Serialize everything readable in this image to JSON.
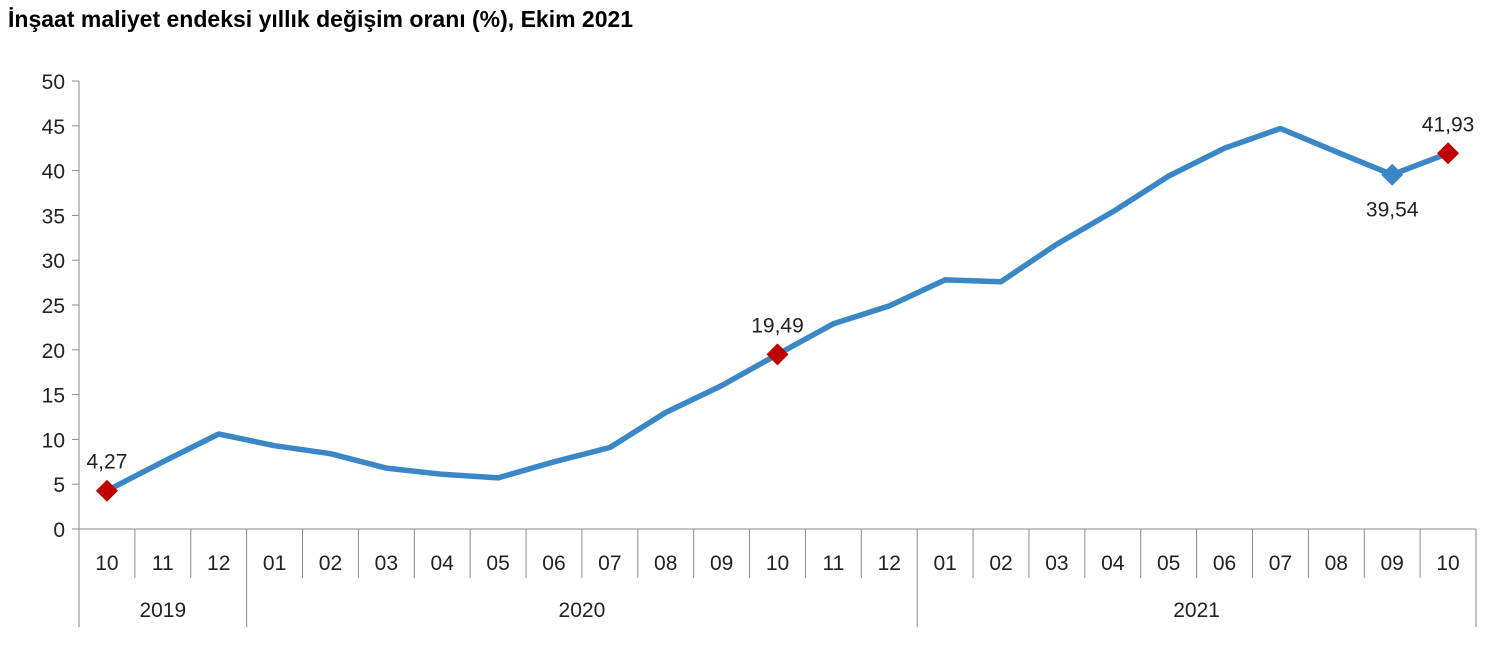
{
  "title": "İnşaat maliyet endeksi yıllık değişim oranı (%), Ekim 2021",
  "chart_data": {
    "type": "line",
    "title": "İnşaat maliyet endeksi yıllık değişim oranı (%), Ekim 2021",
    "xlabel": "",
    "ylabel": "",
    "ylim": [
      0,
      50
    ],
    "y_ticks": [
      "0",
      "5",
      "10",
      "15",
      "20",
      "25",
      "30",
      "35",
      "40",
      "45",
      "50"
    ],
    "categories": [
      "10",
      "11",
      "12",
      "01",
      "02",
      "03",
      "04",
      "05",
      "06",
      "07",
      "08",
      "09",
      "10",
      "11",
      "12",
      "01",
      "02",
      "03",
      "04",
      "05",
      "06",
      "07",
      "08",
      "09",
      "10"
    ],
    "years": [
      {
        "label": "2019",
        "count": 3
      },
      {
        "label": "2020",
        "count": 12
      },
      {
        "label": "2021",
        "count": 10
      }
    ],
    "series": [
      {
        "values": [
          4.27,
          7.5,
          10.6,
          9.3,
          8.4,
          6.8,
          6.1,
          5.7,
          7.5,
          9.1,
          13.0,
          16.0,
          19.49,
          22.9,
          24.9,
          27.8,
          27.6,
          31.8,
          35.4,
          39.4,
          42.5,
          44.7,
          42.1,
          39.54,
          41.93
        ],
        "color": "#3a87c8"
      }
    ],
    "markers": [
      {
        "index": 0,
        "label": "4,27",
        "color": "#c00000",
        "label_pos": "above"
      },
      {
        "index": 12,
        "label": "19,49",
        "color": "#c00000",
        "label_pos": "above"
      },
      {
        "index": 23,
        "label": "39,54",
        "color": "#3a87c8",
        "label_pos": "below"
      },
      {
        "index": 24,
        "label": "41,93",
        "color": "#c00000",
        "label_pos": "above"
      }
    ],
    "grid": false,
    "legend": "none"
  }
}
